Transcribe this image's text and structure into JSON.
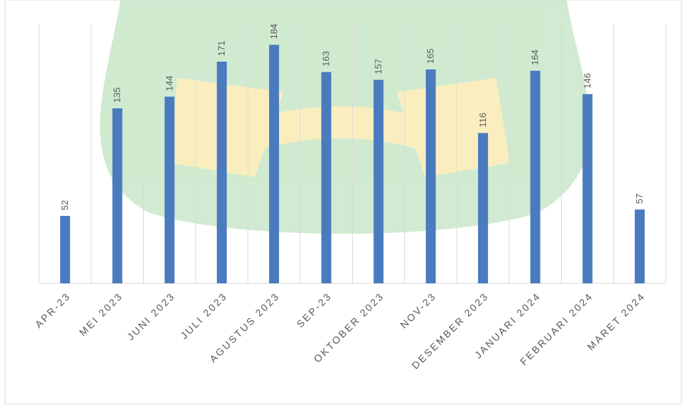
{
  "chart_data": {
    "type": "bar",
    "categories": [
      "APR-23",
      "MEI 2023",
      "JUNI 2023",
      "JULI 2023",
      "AGUSTUS 2023",
      "SEP-23",
      "OKTOBER 2023",
      "NOV-23",
      "DESEMBER 2023",
      "JANUARI 2024",
      "FEBRUARI 2024",
      "MARET 2024"
    ],
    "values": [
      52,
      135,
      144,
      171,
      184,
      163,
      157,
      165,
      116,
      164,
      146,
      57
    ],
    "color": "#4a7bbf",
    "ylim": [
      0,
      200
    ],
    "data_labels": true
  }
}
